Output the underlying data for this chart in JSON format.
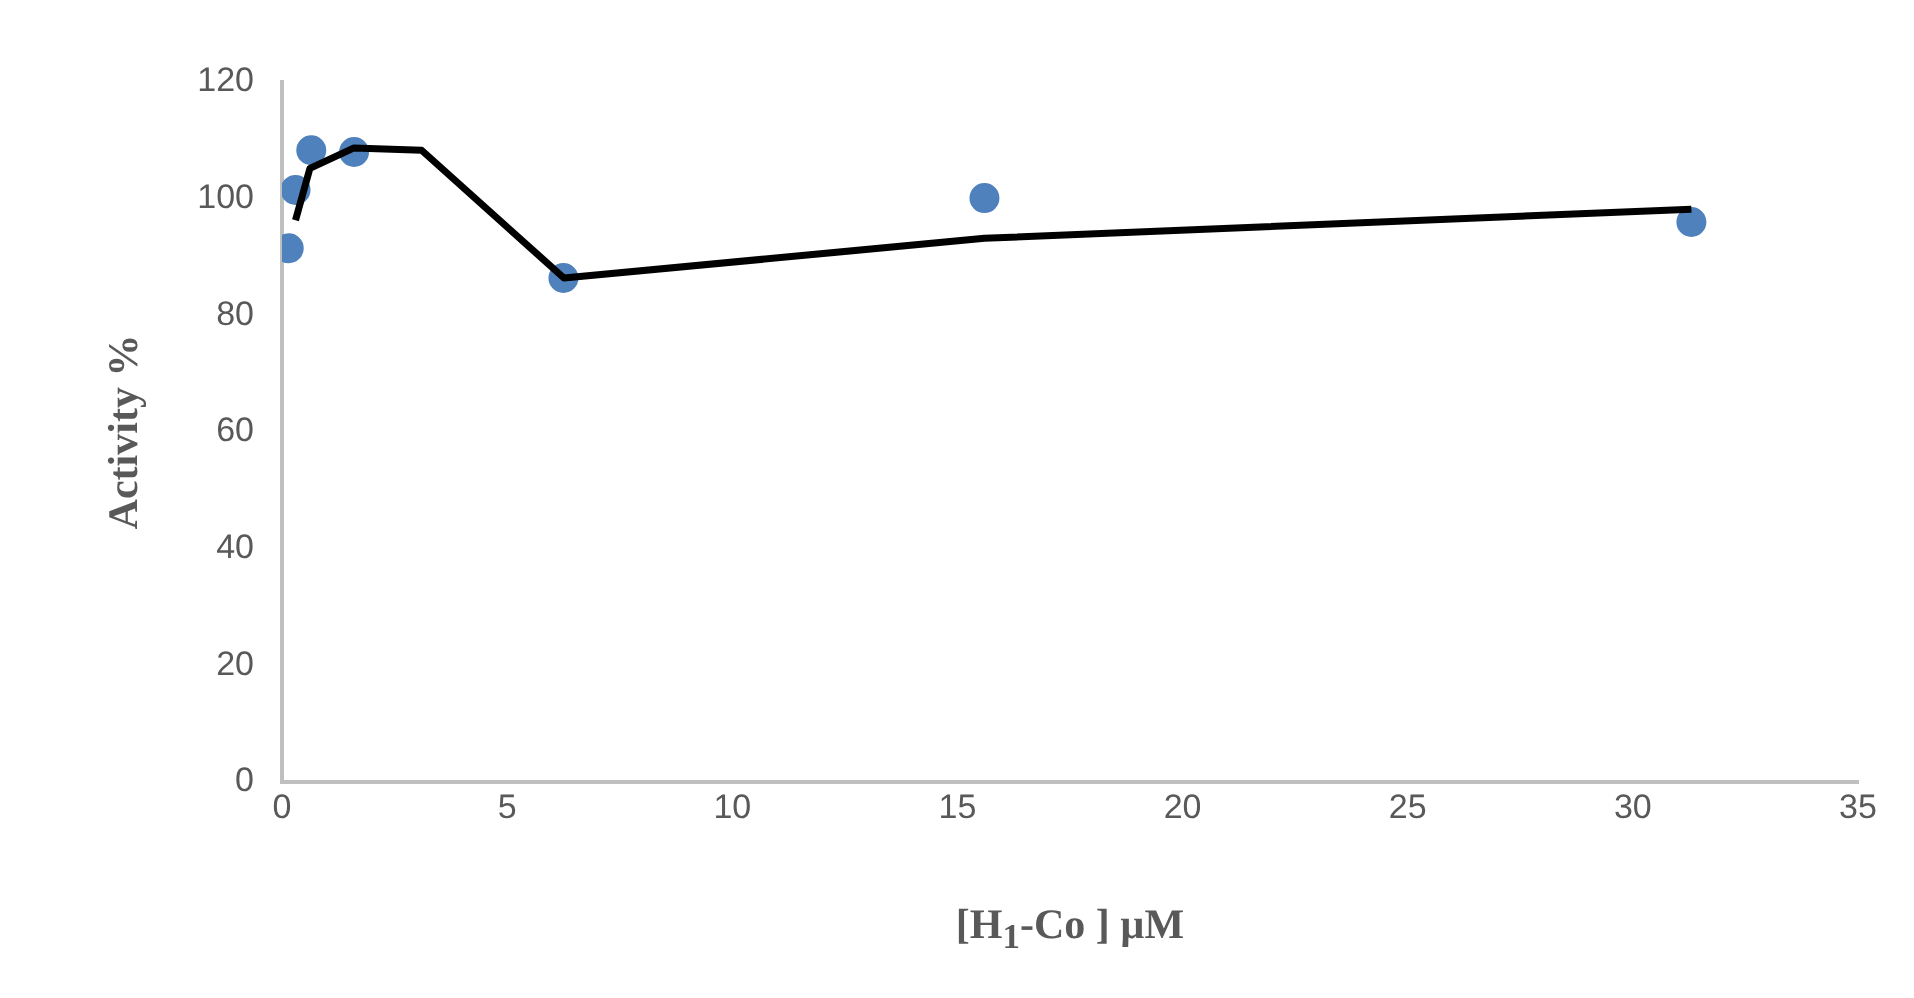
{
  "chart_data": {
    "type": "scatter",
    "xlabel": "[H$_{1}$-Co ] µM",
    "ylabel": "Activity %",
    "xlim": [
      0,
      35
    ],
    "xticks": [
      0,
      5,
      10,
      15,
      20,
      25,
      30,
      35
    ],
    "ylim": [
      0,
      120
    ],
    "yticks": [
      0,
      20,
      40,
      60,
      80,
      100,
      120
    ],
    "grid": false,
    "marker": "circle",
    "series": [
      {
        "color": "#4f81bd",
        "x": [
          0.15,
          0.3,
          0.65,
          1.6,
          6.25,
          15.6,
          31.3
        ],
        "values": [
          91.5,
          101.5,
          108.3,
          108,
          86.4,
          100.1,
          96
        ]
      },
      {
        "type": "line",
        "color": "#000000",
        "marker": "none",
        "x": [
          0.3,
          0.62,
          1.6,
          3.1,
          6.26,
          15.6,
          31.3
        ],
        "values": [
          96.3,
          105.2,
          108.7,
          108.3,
          86.4,
          93.2,
          98.2
        ]
      }
    ]
  }
}
